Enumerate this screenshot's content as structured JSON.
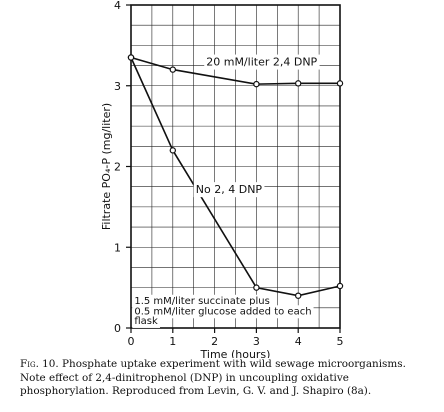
{
  "chart_data": {
    "type": "line",
    "xlabel": "Time (hours)",
    "ylabel": "Filtrate PO₄-P (mg/liter)",
    "xlim": [
      0,
      5
    ],
    "ylim": [
      0,
      4
    ],
    "x_ticks": [
      "0",
      "1",
      "2",
      "3",
      "4",
      "5"
    ],
    "y_ticks": [
      "0",
      "1",
      "2",
      "3",
      "4"
    ],
    "grid": true,
    "series": [
      {
        "name": "20 mM/liter 2,4 DNP",
        "x": [
          0,
          1,
          3,
          4,
          5
        ],
        "y": [
          3.35,
          3.2,
          3.02,
          3.03,
          3.03
        ]
      },
      {
        "name": "No 2, 4 DNP",
        "x": [
          0,
          1,
          3,
          4,
          5
        ],
        "y": [
          3.35,
          2.2,
          0.5,
          0.4,
          0.52
        ]
      }
    ],
    "annotations": [
      "1.5 mM/liter succinate plus",
      "0.5 mM/liter glucose added to each",
      "flask"
    ]
  },
  "caption": {
    "label": "Fig. 10.",
    "text": "Phosphate uptake experiment with wild sewage microorganisms. Note effect of 2,4-dinitrophenol (DNP) in uncoupling oxidative phosphorylation. Reproduced from Levin, G. V. and J. Shapiro (8a)."
  }
}
